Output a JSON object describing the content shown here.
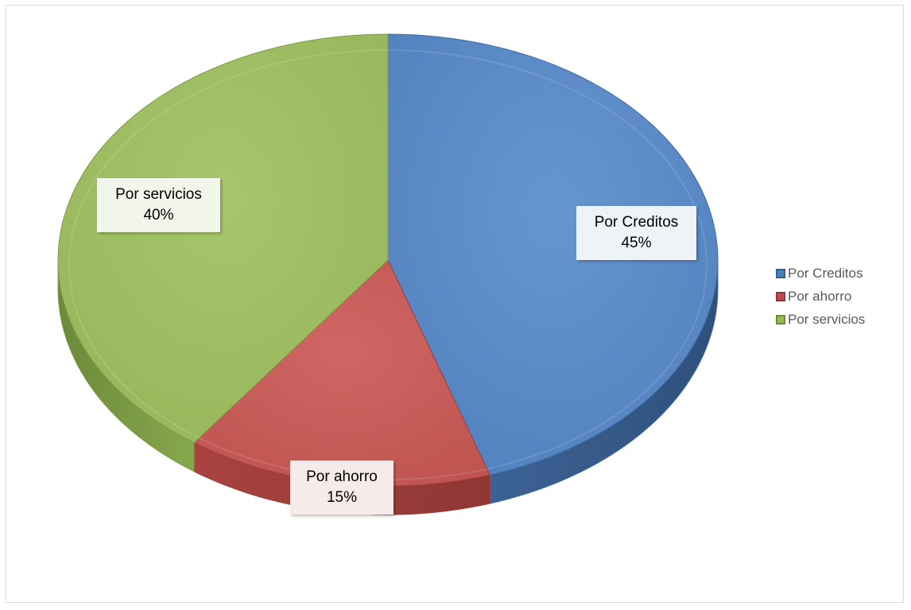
{
  "chart_data": {
    "type": "pie",
    "title": "",
    "slices": [
      {
        "name": "Por Creditos",
        "value": 45,
        "percent_label": "45%",
        "color": "#5b8ac2"
      },
      {
        "name": "Por ahorro",
        "value": 15,
        "percent_label": "15%",
        "color": "#c65c58"
      },
      {
        "name": "Por servicios",
        "value": 40,
        "percent_label": "40%",
        "color": "#9dbb61"
      }
    ],
    "legend_position": "right",
    "style": "3d-exploded-pie"
  },
  "legend": {
    "items": [
      {
        "label": "Por Creditos",
        "color": "#4a7ebb",
        "border": "#385d8a"
      },
      {
        "label": "Por ahorro",
        "color": "#be4b48",
        "border": "#8c3836"
      },
      {
        "label": "Por servicios",
        "color": "#98b954",
        "border": "#71893f"
      }
    ]
  }
}
